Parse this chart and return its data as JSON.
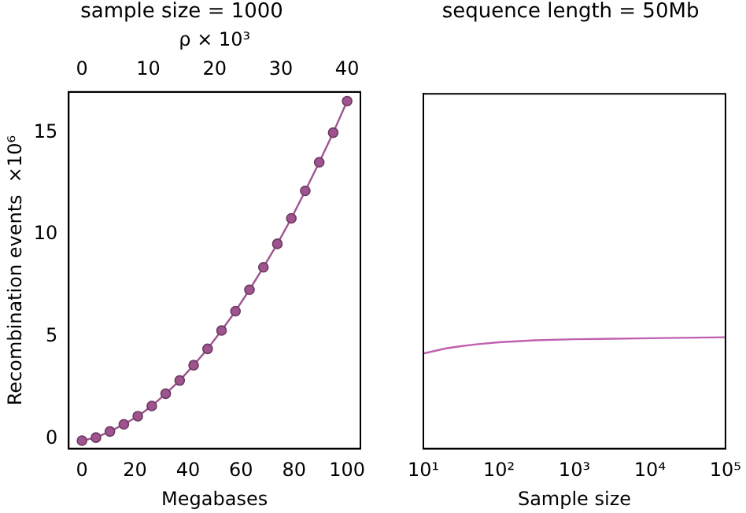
{
  "chart_data": [
    {
      "type": "line",
      "title": "sample size = 1000",
      "xlabel": "Megabases",
      "ylabel": "Recombination events  ×10⁶",
      "x2label": "ρ × 10³",
      "marker": "circle",
      "x": [
        0,
        5.26,
        10.53,
        15.79,
        21.05,
        26.32,
        31.58,
        36.84,
        42.11,
        47.37,
        52.63,
        57.89,
        63.16,
        68.42,
        73.68,
        78.95,
        84.21,
        89.47,
        94.74,
        100
      ],
      "series": [
        {
          "color": "#a0548f",
          "values": [
            -0.1,
            0.05,
            0.35,
            0.7,
            1.1,
            1.6,
            2.2,
            2.85,
            3.6,
            4.4,
            5.3,
            6.25,
            7.3,
            8.4,
            9.55,
            10.8,
            12.15,
            13.55,
            15.0,
            16.55
          ]
        }
      ],
      "xlim": [
        -5,
        105
      ],
      "xticks": [
        0,
        20,
        40,
        60,
        80,
        100
      ],
      "x2lim": [
        -2,
        42
      ],
      "x2ticks": [
        0,
        10,
        20,
        30,
        40
      ],
      "ylim": [
        -0.5,
        17
      ],
      "yticks": [
        0,
        5,
        10,
        15
      ]
    },
    {
      "type": "line",
      "title": "sequence length = 50Mb",
      "xlabel": "Sample size",
      "log": "x",
      "tick_labels": "x",
      "marker": "none",
      "x": [
        10,
        20,
        30,
        50,
        100,
        300,
        1000,
        10000,
        100000
      ],
      "series": [
        {
          "color": "#c060b0",
          "values": [
            4.2,
            4.45,
            4.55,
            4.65,
            4.75,
            4.85,
            4.9,
            4.95,
            5.0
          ]
        }
      ],
      "xlim": [
        10,
        100000
      ],
      "xticks": [
        {
          "value": 10,
          "label": "10¹"
        },
        {
          "value": 100,
          "label": "10²"
        },
        {
          "value": 1000,
          "label": "10³"
        },
        {
          "value": 10000,
          "label": "10⁴"
        },
        {
          "value": 100000,
          "label": "10⁵"
        }
      ],
      "ylim": [
        -0.5,
        17
      ],
      "yticks": [
        0,
        5,
        10,
        15
      ]
    }
  ]
}
